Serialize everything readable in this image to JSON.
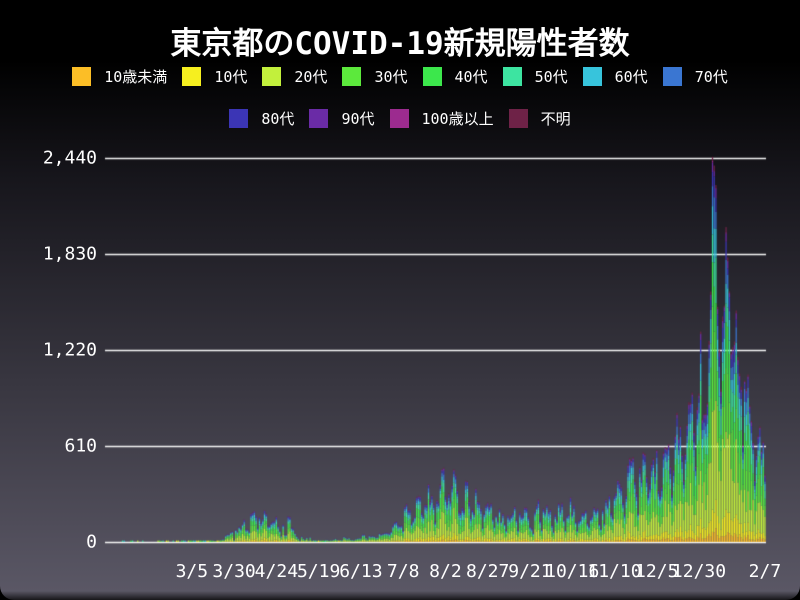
{
  "title": "東京都のCOVID-19新規陽性者数",
  "colors": {
    "background_top": "#000000",
    "background_bottom": "#5a5765",
    "grid": "#f5f5f5",
    "text": "#ffffff"
  },
  "legend": {
    "row1_count": 8,
    "items": [
      {
        "label": "10歳未満",
        "color": "#fcbe26"
      },
      {
        "label": "10代",
        "color": "#f6ef1f"
      },
      {
        "label": "20代",
        "color": "#c2f03c"
      },
      {
        "label": "30代",
        "color": "#5ce93c"
      },
      {
        "label": "40代",
        "color": "#3ce74c"
      },
      {
        "label": "50代",
        "color": "#3de4a1"
      },
      {
        "label": "60代",
        "color": "#37c4dc"
      },
      {
        "label": "70代",
        "color": "#3a76d2"
      },
      {
        "label": "80代",
        "color": "#3b35b5"
      },
      {
        "label": "90代",
        "color": "#6a2ba6"
      },
      {
        "label": "100歳以上",
        "color": "#9c2b8f"
      },
      {
        "label": "不明",
        "color": "#6e2247"
      }
    ]
  },
  "chart_data": {
    "type": "bar",
    "stacked": true,
    "title": "東京都のCOVID-19新規陽性者数",
    "xlabel": "",
    "ylabel": "",
    "grid": "horizontal",
    "legend_position": "top",
    "ylim": [
      0,
      2440
    ],
    "y_tick_values": [
      0,
      610,
      1220,
      1830,
      2440
    ],
    "y_tick_labels": [
      "0",
      "610",
      "1,220",
      "1,830",
      "2,440"
    ],
    "x_tick_labels": [
      "3/5",
      "3/30",
      "4/24",
      "5/19",
      "6/13",
      "7/8",
      "8/2",
      "8/27",
      "9/21",
      "10/16",
      "11/10",
      "12/5",
      "12/30",
      "2/7"
    ],
    "x_tick_dates": [
      "2020-03-05",
      "2020-03-30",
      "2020-04-24",
      "2020-05-19",
      "2020-06-13",
      "2020-07-08",
      "2020-08-02",
      "2020-08-27",
      "2020-09-21",
      "2020-10-16",
      "2020-11-10",
      "2020-12-05",
      "2020-12-30",
      "2021-02-07"
    ],
    "start_date": "2020-01-14",
    "end_date": "2021-02-07",
    "age_groups": [
      "10歳未満",
      "10代",
      "20代",
      "30代",
      "40代",
      "50代",
      "60代",
      "70代",
      "80代",
      "90代",
      "100歳以上",
      "不明"
    ],
    "age_shares": [
      0.03,
      0.07,
      0.25,
      0.2,
      0.15,
      0.1,
      0.07,
      0.06,
      0.045,
      0.02,
      0.003,
      0.012
    ],
    "daily_totals": [
      0,
      0,
      0,
      0,
      0,
      0,
      0,
      0,
      0,
      0,
      1,
      1,
      0,
      0,
      0,
      1,
      1,
      0,
      0,
      1,
      0,
      0,
      1,
      0,
      0,
      0,
      0,
      0,
      0,
      0,
      0,
      2,
      2,
      8,
      3,
      0,
      3,
      3,
      0,
      0,
      1,
      0,
      3,
      1,
      0,
      2,
      2,
      1,
      0,
      1,
      3,
      2,
      2,
      3,
      2,
      2,
      1,
      5,
      2,
      2,
      4,
      3,
      2,
      1,
      9,
      7,
      2,
      3,
      2,
      16,
      17,
      41,
      47,
      47,
      63,
      68,
      13,
      78,
      66,
      97,
      89,
      116,
      143,
      83,
      80,
      66,
      181,
      189,
      197,
      166,
      91,
      159,
      127,
      149,
      201,
      181,
      107,
      102,
      123,
      132,
      134,
      161,
      103,
      72,
      39,
      112,
      47,
      46,
      165,
      160,
      93,
      87,
      57,
      38,
      23,
      9,
      36,
      22,
      15,
      28,
      10,
      30,
      9,
      14,
      5,
      10,
      5,
      11,
      3,
      2,
      2,
      14,
      8,
      10,
      10,
      15,
      21,
      14,
      5,
      13,
      12,
      34,
      28,
      20,
      26,
      14,
      13,
      12,
      18,
      22,
      25,
      24,
      47,
      48,
      27,
      16,
      41,
      35,
      39,
      35,
      29,
      31,
      55,
      48,
      54,
      57,
      60,
      58,
      54,
      67,
      107,
      124,
      131,
      111,
      102,
      106,
      75,
      224,
      243,
      206,
      206,
      119,
      143,
      165,
      286,
      293,
      290,
      188,
      168,
      237,
      238,
      366,
      260,
      295,
      239,
      131,
      266,
      250,
      367,
      463,
      472,
      292,
      258,
      309,
      263,
      360,
      462,
      429,
      331,
      197,
      188,
      222,
      206,
      389,
      385,
      260,
      161,
      207,
      186,
      339,
      258,
      256,
      212,
      95,
      182,
      236,
      250,
      226,
      247,
      148,
      100,
      170,
      141,
      211,
      136,
      181,
      116,
      77,
      170,
      149,
      171,
      187,
      226,
      146,
      80,
      191,
      163,
      171,
      220,
      218,
      162,
      98,
      88,
      59,
      195,
      235,
      270,
      144,
      78,
      212,
      194,
      235,
      196,
      207,
      108,
      66,
      177,
      142,
      248,
      203,
      249,
      146,
      78,
      166,
      177,
      284,
      184,
      235,
      132,
      78,
      139,
      150,
      185,
      186,
      203,
      124,
      102,
      158,
      171,
      221,
      204,
      215,
      116,
      87,
      209,
      122,
      269,
      242,
      294,
      189,
      157,
      293,
      317,
      393,
      374,
      352,
      255,
      180,
      298,
      493,
      534,
      522,
      539,
      391,
      314,
      186,
      476,
      401,
      570,
      561,
      418,
      311,
      372,
      500,
      533,
      449,
      584,
      327,
      299,
      352,
      572,
      602,
      595,
      621,
      480,
      305,
      460,
      678,
      821,
      664,
      736,
      556,
      392,
      563,
      748,
      888,
      884,
      949,
      708,
      481,
      856,
      944,
      1337,
      783,
      814,
      816,
      884,
      1278,
      1591,
      2447,
      2392,
      2268,
      1494,
      1219,
      970,
      1433,
      1502,
      2001,
      1809,
      1592,
      1204,
      1240,
      1274,
      1471,
      1175,
      1070,
      986,
      618,
      1026,
      973,
      1064,
      868,
      769,
      633,
      393,
      556,
      676,
      734,
      577,
      639,
      429
    ]
  }
}
